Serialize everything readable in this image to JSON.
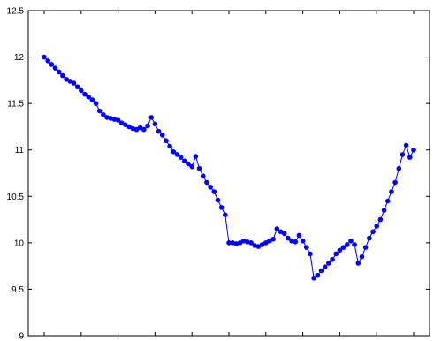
{
  "chart_data": {
    "type": "line",
    "title": "",
    "xlabel": "",
    "ylabel": "",
    "xlim": [
      0,
      100
    ],
    "ylim": [
      9,
      12.5
    ],
    "y_ticks": [
      "9",
      "9.5",
      "10",
      "10.5",
      "11",
      "11.5",
      "12",
      "12.5"
    ],
    "x_ticks_labeled": false,
    "grid": false,
    "marker": "filled-circle",
    "series": [
      {
        "color": "#0000ff",
        "x": [
          0,
          1,
          2,
          3,
          4,
          5,
          6,
          7,
          8,
          9,
          10,
          11,
          12,
          13,
          14,
          15,
          16,
          17,
          18,
          19,
          20,
          21,
          22,
          23,
          24,
          25,
          26,
          27,
          28,
          29,
          30,
          31,
          32,
          33,
          34,
          35,
          36,
          37,
          38,
          39,
          40,
          41,
          42,
          43,
          44,
          45,
          46,
          47,
          48,
          49,
          50,
          51,
          52,
          53,
          54,
          55,
          56,
          57,
          58,
          59,
          60,
          61,
          62,
          63,
          64,
          65,
          66,
          67,
          68,
          69,
          70,
          71,
          72,
          73,
          74,
          75,
          76,
          77,
          78,
          79,
          80,
          81,
          82,
          83,
          84,
          85,
          86,
          87,
          88,
          89,
          90,
          91,
          92,
          93,
          94,
          95,
          96,
          97,
          98,
          99,
          100
        ],
        "values": [
          12.0,
          11.96,
          11.92,
          11.88,
          11.84,
          11.8,
          11.76,
          11.74,
          11.72,
          11.68,
          11.64,
          11.6,
          11.57,
          11.54,
          11.5,
          11.42,
          11.38,
          11.35,
          11.34,
          11.33,
          11.32,
          11.29,
          11.27,
          11.25,
          11.23,
          11.22,
          11.24,
          11.22,
          11.26,
          11.35,
          11.28,
          11.2,
          11.16,
          11.1,
          11.04,
          10.98,
          10.95,
          10.92,
          10.88,
          10.85,
          10.82,
          10.93,
          10.8,
          10.72,
          10.65,
          10.6,
          10.55,
          10.46,
          10.38,
          10.3,
          10.0,
          10.0,
          9.99,
          10.0,
          10.02,
          10.01,
          10.0,
          9.97,
          9.96,
          9.98,
          10.0,
          10.02,
          10.04,
          10.15,
          10.12,
          10.1,
          10.05,
          10.02,
          10.01,
          10.08,
          10.02,
          9.95,
          9.88,
          9.62,
          9.65,
          9.7,
          9.74,
          9.78,
          9.82,
          9.88,
          9.92,
          9.95,
          9.98,
          10.02,
          9.98,
          9.78,
          9.85,
          9.95,
          10.05,
          10.12,
          10.18,
          10.25,
          10.35,
          10.45,
          10.55,
          10.65,
          10.8,
          10.95,
          11.05,
          10.92,
          11.0
        ]
      }
    ]
  }
}
